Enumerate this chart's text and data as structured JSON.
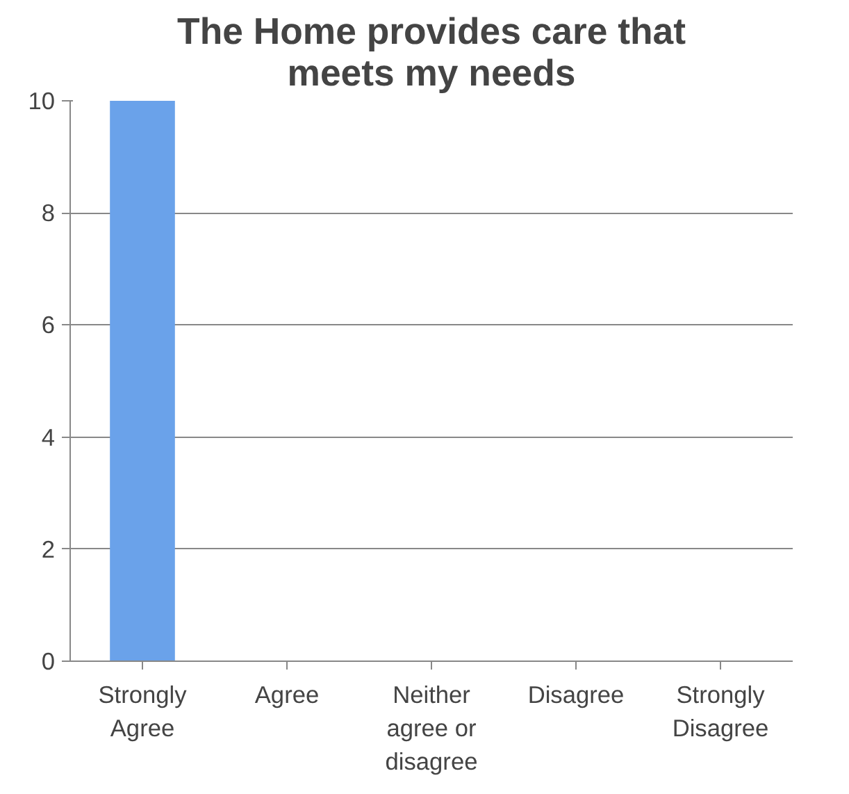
{
  "chart_data": {
    "type": "bar",
    "title": "The Home provides care that meets my needs",
    "categories": [
      "Strongly Agree",
      "Agree",
      "Neither agree or disagree",
      "Disagree",
      "Strongly Disagree"
    ],
    "values": [
      10,
      0,
      0,
      0,
      0
    ],
    "color": "#6aa2ea",
    "ylim": [
      0,
      10
    ],
    "yticks": [
      0,
      2,
      4,
      6,
      8,
      10
    ],
    "grid": "y"
  }
}
